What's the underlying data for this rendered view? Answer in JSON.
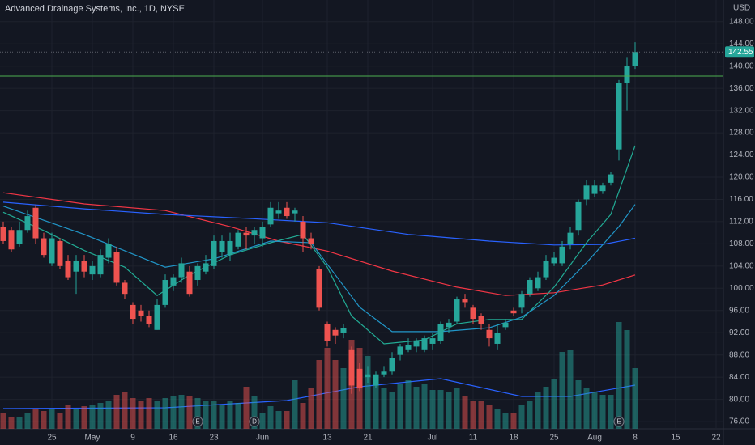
{
  "chart_data": {
    "type": "candlestick",
    "title": "Advanced Drainage Systems, Inc., 1D, NYSE",
    "currency": "USD",
    "up_color": "#26a69a",
    "down_color": "#ef5350",
    "volume_opacity": 0.5,
    "grid": true,
    "open": [
      111,
      110.5,
      108,
      110.5,
      114.5,
      109,
      104.5,
      108.5,
      105,
      103,
      105,
      102.5,
      102.5,
      105.5,
      106.5,
      101,
      97,
      96,
      95,
      92.5,
      97,
      100.5,
      102,
      103,
      101.5,
      103,
      104,
      106.5,
      106,
      107.5,
      110,
      109.5,
      109,
      111.5,
      113.5,
      114.5,
      113.5,
      112,
      109,
      103.5,
      93.5,
      92.5,
      92,
      89,
      85.5,
      84,
      82.5,
      84.5,
      85,
      88,
      89,
      89.5,
      89,
      90,
      90.5,
      93,
      94,
      98,
      96.5,
      95,
      92.5,
      90,
      93,
      96,
      96.5,
      99,
      100,
      102,
      104.5,
      104.5,
      108,
      110.5,
      116,
      117,
      117.5,
      119,
      125,
      137,
      140
    ],
    "high": [
      112,
      111,
      112,
      114,
      115,
      110,
      110,
      109,
      106,
      106,
      106,
      105,
      107,
      109,
      107.5,
      101.5,
      97.5,
      97,
      96,
      98,
      102.5,
      102.5,
      105.5,
      104,
      104.5,
      106,
      109.5,
      109.5,
      110,
      110.5,
      111,
      111,
      112,
      115.5,
      115.5,
      115.5,
      114.5,
      113,
      110,
      104,
      94,
      93,
      93.5,
      89.5,
      86.5,
      86,
      85,
      86,
      88.5,
      90,
      91,
      91,
      91.5,
      92,
      94,
      94.5,
      98.5,
      99,
      97,
      95.5,
      93.5,
      93.5,
      94.5,
      96.5,
      99.5,
      102,
      103,
      106,
      106.5,
      108.5,
      111,
      116,
      119.5,
      119.5,
      119,
      121,
      137.5,
      141.5,
      144.3
    ],
    "low": [
      108,
      106.5,
      107.5,
      110,
      108,
      105.5,
      104,
      103.5,
      101.5,
      99,
      102,
      101.5,
      102,
      104.5,
      100.5,
      98,
      93.5,
      94,
      93,
      92.5,
      96.5,
      99.5,
      101,
      98.5,
      100.5,
      102.5,
      103.5,
      105.5,
      105,
      107,
      107,
      108,
      107.5,
      111,
      112.5,
      112.5,
      112,
      106.5,
      107,
      96,
      89.5,
      90,
      91,
      81,
      81.5,
      83,
      82,
      84,
      84.5,
      87,
      88.5,
      88.5,
      88.5,
      89,
      90,
      92,
      93.5,
      96.5,
      93.5,
      92.5,
      89.5,
      89,
      92.5,
      95,
      95.5,
      98.5,
      99.5,
      101.5,
      104,
      104,
      107,
      109.5,
      115,
      116.5,
      117,
      118.5,
      123,
      132,
      139.5
    ],
    "close": [
      108.5,
      107,
      110.5,
      113,
      109,
      106,
      109,
      104,
      102,
      105,
      103,
      104,
      106,
      108,
      101,
      99,
      94.5,
      95,
      93.5,
      97,
      101.5,
      102,
      104.5,
      99,
      104,
      104.5,
      108.5,
      108.5,
      108.5,
      110,
      109.5,
      110.5,
      111,
      114.5,
      114,
      113,
      114,
      109,
      108,
      96.5,
      90.5,
      91.5,
      92.8,
      82.5,
      82,
      84.5,
      84.5,
      85,
      87.5,
      89.5,
      89.8,
      90.5,
      91,
      91,
      93.5,
      93.8,
      98,
      97.5,
      94.5,
      93.5,
      91,
      92,
      93.8,
      95.5,
      99,
      101.5,
      102,
      105,
      105.5,
      107.5,
      110,
      115.5,
      118.5,
      118.5,
      118.5,
      120.5,
      137,
      140,
      142.55
    ],
    "volume": [
      200,
      150,
      150,
      200,
      250,
      220,
      250,
      200,
      300,
      250,
      280,
      300,
      320,
      350,
      420,
      450,
      380,
      350,
      380,
      350,
      380,
      400,
      420,
      400,
      380,
      350,
      350,
      300,
      350,
      320,
      520,
      400,
      200,
      280,
      220,
      220,
      600,
      320,
      500,
      850,
      1000,
      850,
      750,
      1100,
      1000,
      900,
      600,
      500,
      450,
      550,
      600,
      520,
      550,
      480,
      480,
      450,
      500,
      400,
      350,
      350,
      300,
      250,
      200,
      200,
      300,
      350,
      450,
      520,
      620,
      950,
      980,
      600,
      500,
      450,
      420,
      420,
      1320,
      1220,
      750
    ],
    "vlim": [
      0,
      5300
    ],
    "volume_average": {
      "color": "#2962ff",
      "x": [
        0,
        20,
        35,
        44,
        54,
        64,
        70,
        78
      ],
      "values": [
        250,
        260,
        350,
        520,
        620,
        400,
        400,
        540
      ]
    },
    "moving_averages": [
      {
        "color": "#f23645",
        "x": [
          0,
          10,
          20,
          28,
          34,
          40,
          48,
          56,
          62,
          68,
          74,
          78
        ],
        "values": [
          117.2,
          115.2,
          114,
          111.1,
          108.5,
          106.7,
          103.1,
          100.2,
          98.7,
          99.2,
          100.6,
          102.4
        ]
      },
      {
        "color": "#2962ff",
        "x": [
          0,
          10,
          20,
          30,
          40,
          50,
          60,
          68,
          74,
          78
        ],
        "values": [
          115.5,
          114.3,
          113.3,
          112.6,
          111.8,
          109.7,
          108.5,
          107.8,
          107.9,
          109
        ]
      },
      {
        "color": "#22ab94",
        "x": [
          0,
          5,
          10,
          15,
          19,
          23,
          28,
          33,
          37,
          40,
          43,
          47,
          52,
          56,
          60,
          64,
          68,
          72,
          75,
          78
        ],
        "values": [
          113.7,
          110.4,
          106.8,
          103.8,
          98.7,
          102.4,
          106,
          108.2,
          109.7,
          103.8,
          95,
          90,
          90.7,
          93.6,
          94.4,
          94.4,
          100.2,
          108.2,
          113.3,
          125.7
        ]
      },
      {
        "color": "#2196c8",
        "x": [
          0,
          10,
          20,
          26,
          33,
          38,
          41,
          44,
          48,
          54,
          60,
          64,
          68,
          72,
          76,
          78
        ],
        "values": [
          114.8,
          109.7,
          103.8,
          105.3,
          108.5,
          108.2,
          102.4,
          96.6,
          92.2,
          92.2,
          92.9,
          94.8,
          98.7,
          104.6,
          111.1,
          115.1
        ]
      }
    ],
    "horizontal_line": {
      "value": 138.2,
      "color": "#4caf50"
    },
    "last_price": 142.55,
    "events": [
      {
        "index": 24,
        "label": "E"
      },
      {
        "index": 31,
        "label": "D"
      },
      {
        "index": 76,
        "label": "E"
      }
    ],
    "xlim": [
      -0.4,
      88.9
    ],
    "xticks": [
      {
        "value": 6,
        "label": "25"
      },
      {
        "value": 11,
        "label": "May"
      },
      {
        "value": 16,
        "label": "9"
      },
      {
        "value": 21,
        "label": "16"
      },
      {
        "value": 26,
        "label": "23"
      },
      {
        "value": 32,
        "label": "Jun"
      },
      {
        "value": 40,
        "label": "13"
      },
      {
        "value": 45,
        "label": "21"
      },
      {
        "value": 53,
        "label": "Jul"
      },
      {
        "value": 58,
        "label": "11"
      },
      {
        "value": 63,
        "label": "18"
      },
      {
        "value": 68,
        "label": "25"
      },
      {
        "value": 73,
        "label": "Aug"
      },
      {
        "value": 78,
        "label": "8"
      },
      {
        "value": 83,
        "label": "15"
      },
      {
        "value": 88,
        "label": "22"
      }
    ],
    "ylim": [
      74.7,
      151.9
    ],
    "yticks": [
      {
        "value": 76,
        "label": "76.00"
      },
      {
        "value": 80,
        "label": "80.00"
      },
      {
        "value": 84,
        "label": "84.00"
      },
      {
        "value": 88,
        "label": "88.00"
      },
      {
        "value": 92,
        "label": "92.00"
      },
      {
        "value": 96,
        "label": "96.00"
      },
      {
        "value": 100,
        "label": "100.00"
      },
      {
        "value": 104,
        "label": "104.00"
      },
      {
        "value": 108,
        "label": "108.00"
      },
      {
        "value": 112,
        "label": "112.00"
      },
      {
        "value": 116,
        "label": "116.00"
      },
      {
        "value": 120,
        "label": "120.00"
      },
      {
        "value": 124,
        "label": "124.00"
      },
      {
        "value": 128,
        "label": "128.00"
      },
      {
        "value": 132,
        "label": "132.00"
      },
      {
        "value": 136,
        "label": "136.00"
      },
      {
        "value": 140,
        "label": "140.00"
      },
      {
        "value": 144,
        "label": "144.00"
      },
      {
        "value": 148,
        "label": "148.00"
      }
    ]
  }
}
